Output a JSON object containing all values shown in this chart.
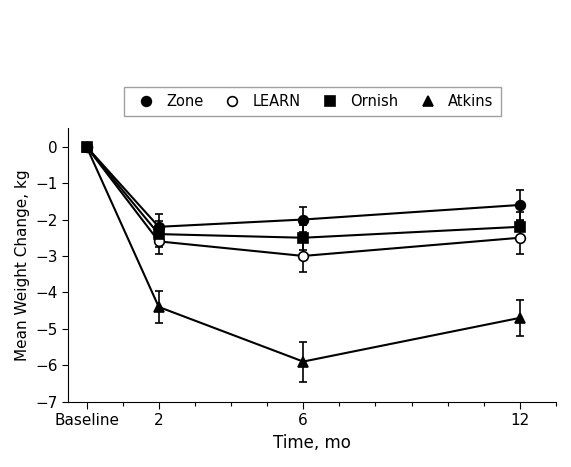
{
  "x_labels": [
    "Baseline",
    "2",
    "6",
    "12"
  ],
  "x_positions": [
    0,
    2,
    6,
    12
  ],
  "baseline_x": 0,
  "series": [
    {
      "name": "Zone",
      "marker": "o",
      "fillstyle": "full",
      "color": "#000000",
      "values": [
        0,
        -2.2,
        -2.0,
        -1.6
      ],
      "yerr": [
        0,
        0.35,
        0.35,
        0.4
      ]
    },
    {
      "name": "LEARN",
      "marker": "o",
      "fillstyle": "none",
      "color": "#000000",
      "values": [
        0,
        -2.6,
        -3.0,
        -2.5
      ],
      "yerr": [
        0,
        0.35,
        0.45,
        0.45
      ]
    },
    {
      "name": "Ornish",
      "marker": "s",
      "fillstyle": "full",
      "color": "#000000",
      "values": [
        0,
        -2.4,
        -2.5,
        -2.2
      ],
      "yerr": [
        0,
        0.35,
        0.35,
        0.4
      ]
    },
    {
      "name": "Atkins",
      "marker": "^",
      "fillstyle": "full",
      "color": "#000000",
      "values": [
        0,
        -4.4,
        -5.9,
        -4.7
      ],
      "yerr": [
        0,
        0.45,
        0.55,
        0.5
      ]
    }
  ],
  "ylabel": "Mean Weight Change, kg",
  "xlabel": "Time, mo",
  "ylim": [
    -7,
    0.5
  ],
  "yticks": [
    0,
    -1,
    -2,
    -3,
    -4,
    -5,
    -6,
    -7
  ],
  "ytick_labels": [
    "0",
    "−1",
    "−2",
    "−3",
    "−4",
    "−5",
    "−6",
    "−7"
  ],
  "xlim": [
    -0.5,
    13
  ],
  "figsize": [
    5.71,
    4.67
  ],
  "dpi": 100,
  "background_color": "#ffffff",
  "markersize": 7,
  "linewidth": 1.5,
  "capsize": 3,
  "elinewidth": 1.2,
  "markeredgewidth": 1.2
}
